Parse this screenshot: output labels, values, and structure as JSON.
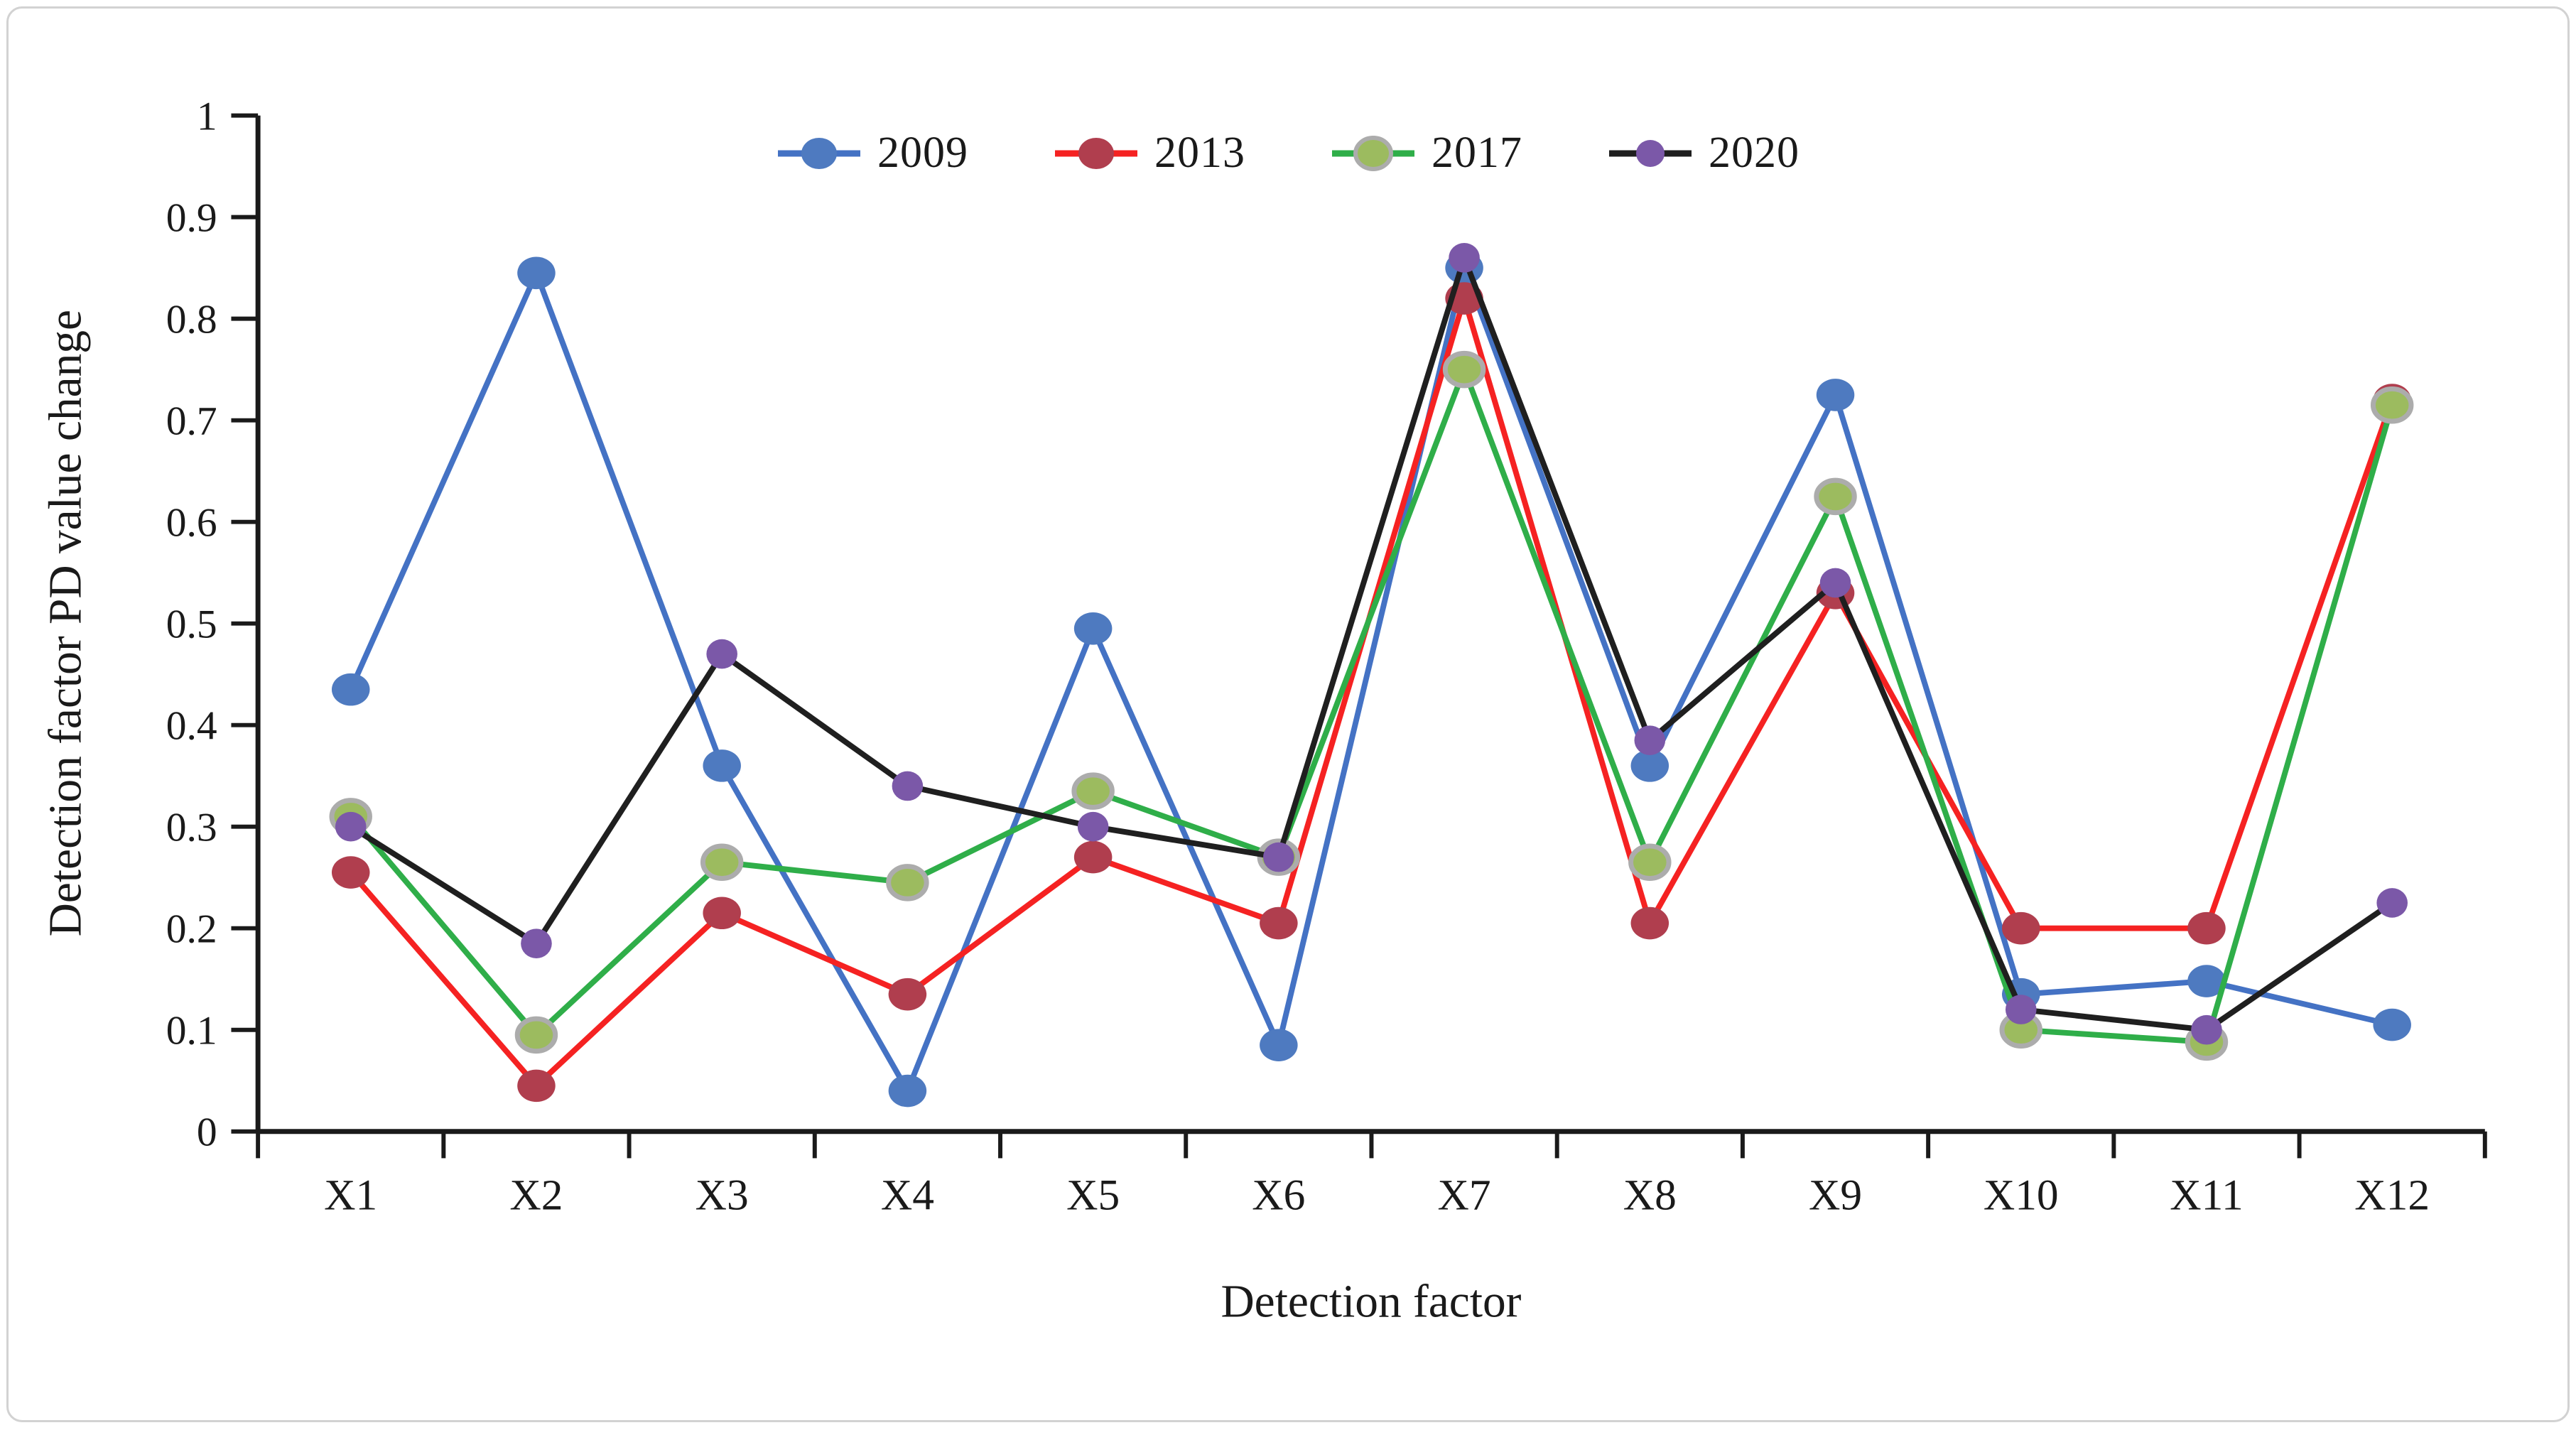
{
  "figure": {
    "background": "#ffffff",
    "border_color": "#d2d2d2",
    "text_color": "#1a1a1a",
    "axis_color": "#1a1a1a"
  },
  "chart_data": {
    "type": "line",
    "title": "",
    "xlabel": "Detection factor",
    "ylabel": "Detection factor PD value change",
    "categories": [
      "X1",
      "X2",
      "X3",
      "X4",
      "X5",
      "X6",
      "X7",
      "X8",
      "X9",
      "X10",
      "X11",
      "X12"
    ],
    "y_tick_labels": [
      "0",
      "0.1",
      "0.2",
      "0.3",
      "0.4",
      "0.5",
      "0.6",
      "0.7",
      "0.8",
      "0.9",
      "1"
    ],
    "ylim": [
      0,
      1
    ],
    "grid": false,
    "legend_position": "top-center",
    "series": [
      {
        "name": "2009",
        "line_color": "#4472C4",
        "marker_color": "#4E7AC0",
        "marker_stroke": "none",
        "values": [
          0.435,
          0.845,
          0.36,
          0.04,
          0.495,
          0.085,
          0.85,
          0.36,
          0.725,
          0.135,
          0.148,
          0.105
        ]
      },
      {
        "name": "2013",
        "line_color": "#F52222",
        "marker_color": "#B03E4E",
        "marker_stroke": "none",
        "values": [
          0.255,
          0.045,
          0.215,
          0.135,
          0.27,
          0.205,
          0.82,
          0.205,
          0.53,
          0.2,
          0.2,
          0.72
        ]
      },
      {
        "name": "2017",
        "line_color": "#2FAE49",
        "marker_color": "#9CBB5F",
        "marker_stroke": "#ACACAC",
        "values": [
          0.31,
          0.095,
          0.265,
          0.245,
          0.335,
          0.27,
          0.75,
          0.265,
          0.625,
          0.1,
          0.088,
          0.715
        ]
      },
      {
        "name": "2020",
        "line_color": "#1F1F1F",
        "marker_color": "#7B58A8",
        "marker_stroke": "none",
        "values": [
          0.3,
          0.185,
          0.47,
          0.34,
          0.3,
          0.27,
          0.86,
          0.385,
          0.54,
          0.12,
          0.1,
          0.225
        ]
      }
    ]
  }
}
